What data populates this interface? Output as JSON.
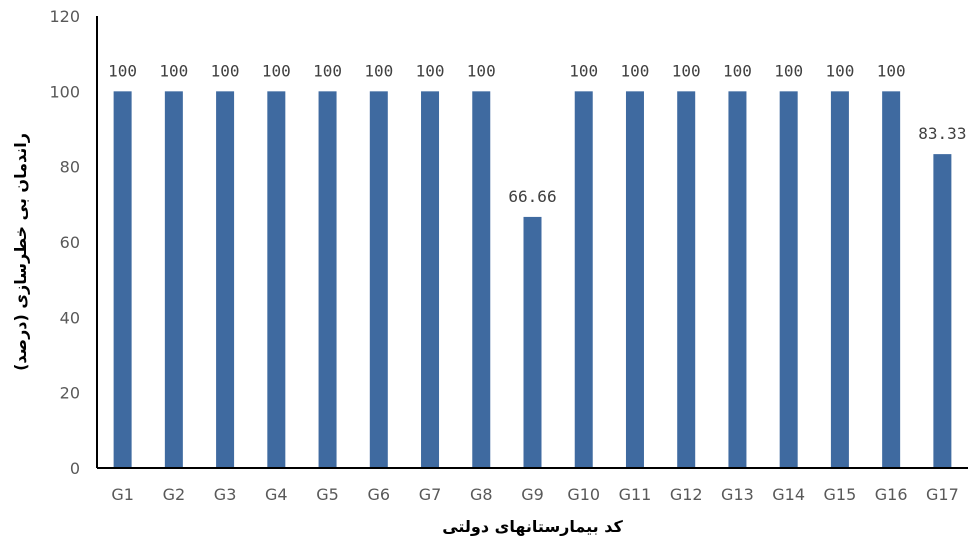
{
  "chart_data": {
    "type": "bar",
    "title": "",
    "xlabel": "کد بیمارستانهای دولتی",
    "ylabel": "راندمان بی خطرسازی (درصد)",
    "ylim": [
      0,
      120
    ],
    "yticks": [
      "0",
      "20",
      "40",
      "60",
      "80",
      "100",
      "120"
    ],
    "categories": [
      "G1",
      "G2",
      "G3",
      "G4",
      "G5",
      "G6",
      "G7",
      "G8",
      "G9",
      "G10",
      "G11",
      "G12",
      "G13",
      "G14",
      "G15",
      "G16",
      "G17"
    ],
    "values": [
      100,
      100,
      100,
      100,
      100,
      100,
      100,
      100,
      66.66,
      100,
      100,
      100,
      100,
      100,
      100,
      100,
      83.33
    ],
    "data_labels": [
      "100",
      "100",
      "100",
      "100",
      "100",
      "100",
      "100",
      "100",
      "66.66",
      "100",
      "100",
      "100",
      "100",
      "100",
      "100",
      "100",
      "83.33"
    ],
    "grid": false,
    "legend": "none",
    "colors": {
      "bar": "#3f6aa0",
      "axis": "#000000",
      "tick_text": "#595959",
      "data_label": "#404040"
    }
  }
}
